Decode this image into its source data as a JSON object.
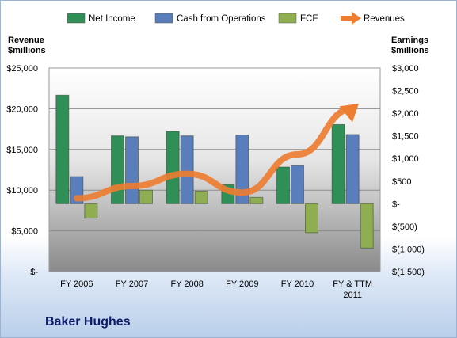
{
  "chart_data": {
    "type": "bar",
    "company": "Baker Hughes",
    "categories": [
      "FY 2006",
      "FY 2007",
      "FY 2008",
      "FY 2009",
      "FY 2010",
      "FY & TTM 2011"
    ],
    "series": [
      {
        "name": "Net Income",
        "axis": "right",
        "kind": "bar",
        "color": "#2f8f56",
        "values": [
          2400,
          1500,
          1600,
          420,
          810,
          1750
        ]
      },
      {
        "name": "Cash from Operations",
        "axis": "right",
        "kind": "bar",
        "color": "#5a7dbb",
        "values": [
          600,
          1480,
          1500,
          1520,
          840,
          1530
        ]
      },
      {
        "name": "FCF",
        "axis": "right",
        "kind": "bar",
        "color": "#8fae52",
        "values": [
          -320,
          300,
          280,
          140,
          -640,
          -980
        ]
      },
      {
        "name": "Revenues",
        "axis": "left",
        "kind": "line",
        "color": "#ed7d31",
        "values": [
          9000,
          10500,
          12000,
          9700,
          14400,
          20000
        ]
      }
    ],
    "y_left": {
      "label": "Revenue $millions",
      "ylim": [
        0,
        25000
      ],
      "ticks": [
        0,
        5000,
        10000,
        15000,
        20000,
        25000
      ],
      "tick_labels": [
        "$-",
        "$5,000",
        "$10,000",
        "$15,000",
        "$20,000",
        "$25,000"
      ]
    },
    "y_right": {
      "label": "Earnings $millions",
      "ylim": [
        -1500,
        3000
      ],
      "ticks": [
        -1500,
        -1000,
        -500,
        0,
        500,
        1000,
        1500,
        2000,
        2500,
        3000
      ],
      "tick_labels": [
        "$(1,500)",
        "$(1,000)",
        "$(500)",
        "$-",
        "$500",
        "$1,000",
        "$1,500",
        "$2,000",
        "$2,500",
        "$3,000"
      ]
    },
    "x_tick_labels": [
      "FY 2006",
      "FY 2007",
      "FY 2008",
      "FY 2009",
      "FY 2010",
      "FY & TTM|2011"
    ],
    "legend": [
      "Net Income",
      "Cash from Operations",
      "FCF",
      "Revenues"
    ],
    "legend_position": "top",
    "grid": true
  }
}
